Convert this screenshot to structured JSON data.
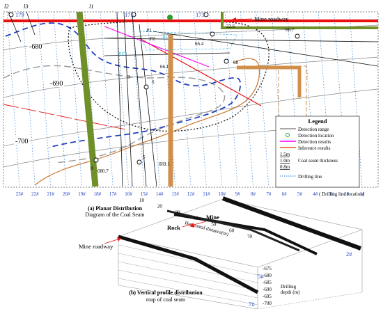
{
  "top_panel": {
    "station_numbers": [
      "179",
      "175",
      "173"
    ],
    "annotations": {
      "mine_roadway": "Mine roadway",
      "contours": [
        "680",
        "690",
        "700"
      ],
      "line_labels": [
        "l2",
        "l3",
        "l1"
      ],
      "small_values": [
        "22.6",
        "66.7",
        "66.4",
        "65",
        "66.1",
        "68",
        "66.4",
        "676",
        "67.1",
        "667",
        "669.1",
        "680.7"
      ],
      "rf_labels": [
        "RF1",
        "RF2"
      ],
      "point_labels": [
        "3",
        "6",
        "5",
        "8",
        "P1",
        "P2",
        "P3",
        "P4"
      ]
    },
    "drilling_lines": [
      "23#",
      "22#",
      "21#",
      "20#",
      "19#",
      "18#",
      "17#",
      "16#",
      "15#",
      "14#",
      "13#",
      "12#",
      "11#",
      "10#",
      "9#",
      "8#",
      "7#",
      "6#",
      "5#",
      "4#",
      "3#",
      "2#",
      "1#"
    ],
    "drilling_line_axis_label": "Drilling line  location",
    "legend": {
      "title": "Legend",
      "items": [
        {
          "label": "Detection range",
          "color": "#777777"
        },
        {
          "label": "Detection location",
          "color": "#2ca02c"
        },
        {
          "label": "Detection results",
          "color": "#ff00ff"
        },
        {
          "label": "Inference results",
          "color": "#e05a0a"
        },
        {
          "label": "Coal seam thickness",
          "samples": [
            "1.5m",
            "1.0m",
            "0.8m"
          ]
        },
        {
          "label": "Drilling line",
          "color": "#2a7fd4"
        }
      ]
    },
    "caption": [
      "(a) Planar Distribution",
      "Diagram of the Coal Seam"
    ]
  },
  "bottom_panel": {
    "labels": {
      "mine": "Mine",
      "rock": "Rock",
      "mine_roadway": "Mine roadway",
      "horizontal_axis": "Horizontal distance(m)",
      "depth_axis": [
        "Drilling",
        "depth (m)"
      ]
    },
    "horizontal_ticks": [
      "10",
      "20",
      "30",
      "40",
      "50",
      "60",
      "70"
    ],
    "depth_ticks": [
      "-675",
      "-680",
      "-685",
      "-690",
      "-695",
      "-700"
    ],
    "profile_ids": [
      "2#",
      "5#",
      "7#"
    ],
    "caption": [
      "(b) Vertical profile distribution",
      "map of coal seam"
    ]
  },
  "colors": {
    "mine_roadway_red": "#e81010",
    "fault_green": "#6f8f28",
    "inference_orange": "#d08f4a",
    "blue_dashed": "#1f3fbf",
    "drill_blue": "#2a7fd4"
  }
}
